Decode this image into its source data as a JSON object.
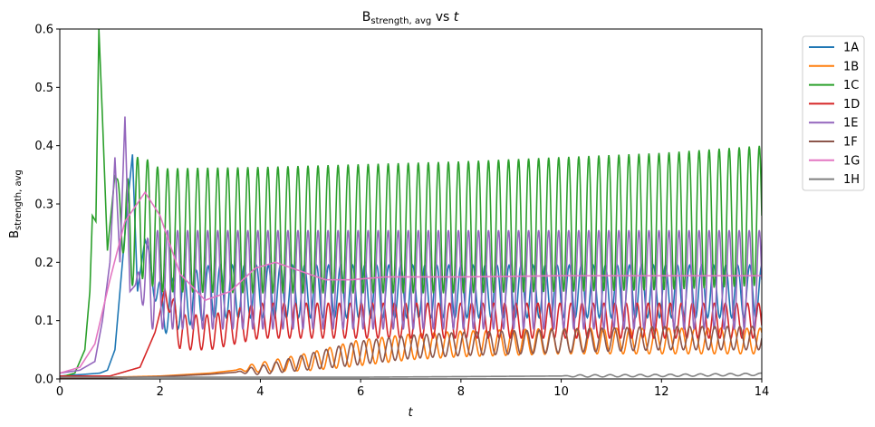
{
  "chart_data": {
    "type": "line",
    "title": {
      "main": "B",
      "subscript": "strength, avg",
      "connector": " vs ",
      "var": "t"
    },
    "xlabel": "t",
    "ylabel": {
      "main": "B",
      "subscript": "strength, avg"
    },
    "xlim": [
      0,
      14
    ],
    "ylim": [
      0,
      0.6
    ],
    "xticks": [
      "0",
      "2",
      "4",
      "6",
      "8",
      "10",
      "12",
      "14"
    ],
    "yticks": [
      "0.0",
      "0.1",
      "0.2",
      "0.3",
      "0.4",
      "0.5",
      "0.6"
    ],
    "grid": false,
    "legend_position": "outside-right",
    "series": [
      {
        "name": "1A",
        "color": "#1f77b4",
        "x": [
          0,
          0.5,
          0.8,
          0.95,
          1.1,
          1.25,
          1.35,
          1.45,
          1.55,
          1.7,
          2.0,
          3.0,
          4.0,
          6.0,
          8.0,
          10.0,
          12.0,
          14.0
        ],
        "y": [
          0.005,
          0.008,
          0.01,
          0.015,
          0.05,
          0.2,
          0.3,
          0.385,
          0.15,
          0.24,
          0.12,
          0.15,
          0.15,
          0.15,
          0.15,
          0.15,
          0.15,
          0.15
        ],
        "osc_start": 1.7,
        "osc_period": 0.24,
        "osc_amp": 0.045
      },
      {
        "name": "1B",
        "color": "#ff7f0e",
        "x": [
          0,
          1,
          2,
          3,
          4,
          5,
          6,
          7,
          8,
          10,
          12,
          14
        ],
        "y": [
          0.003,
          0.003,
          0.005,
          0.01,
          0.02,
          0.03,
          0.045,
          0.055,
          0.06,
          0.065,
          0.065,
          0.065
        ],
        "osc_start": 3.5,
        "osc_period": 0.26,
        "osc_amp": 0.022,
        "osc_grow": true
      },
      {
        "name": "1C",
        "color": "#2ca02c",
        "x": [
          0,
          0.3,
          0.5,
          0.6,
          0.65,
          0.72,
          0.78,
          0.85,
          0.95,
          1.1,
          1.3,
          1.6,
          2.0,
          4.0,
          8.0,
          12.0,
          14.0
        ],
        "y": [
          0.003,
          0.01,
          0.05,
          0.15,
          0.28,
          0.27,
          0.6,
          0.45,
          0.22,
          0.35,
          0.25,
          0.28,
          0.255,
          0.255,
          0.26,
          0.27,
          0.28
        ],
        "osc_start": 1.1,
        "osc_period": 0.2,
        "osc_amp": 0.105,
        "osc_amp_end": 0.12
      },
      {
        "name": "1D",
        "color": "#d62728",
        "x": [
          0,
          1.0,
          1.6,
          1.9,
          2.1,
          2.4,
          3.0,
          4.0,
          6.0,
          8.0,
          10.0,
          12.0,
          14.0
        ],
        "y": [
          0.005,
          0.005,
          0.02,
          0.08,
          0.15,
          0.08,
          0.08,
          0.1,
          0.1,
          0.1,
          0.1,
          0.1,
          0.1
        ],
        "osc_start": 2.0,
        "osc_period": 0.22,
        "osc_amp": 0.03
      },
      {
        "name": "1E",
        "color": "#9467bd",
        "x": [
          0,
          0.4,
          0.7,
          0.85,
          1.0,
          1.1,
          1.2,
          1.3,
          1.4,
          1.6,
          2.0,
          3.0,
          6.0,
          10.0,
          14.0
        ],
        "y": [
          0.01,
          0.015,
          0.03,
          0.1,
          0.2,
          0.38,
          0.2,
          0.45,
          0.15,
          0.17,
          0.17,
          0.17,
          0.17,
          0.17,
          0.17
        ],
        "osc_start": 1.5,
        "osc_period": 0.2,
        "osc_amp": 0.085
      },
      {
        "name": "1F",
        "color": "#8c564b",
        "x": [
          0,
          1,
          2,
          3,
          4,
          5,
          6,
          7,
          8,
          10,
          12,
          14
        ],
        "y": [
          0.002,
          0.002,
          0.004,
          0.008,
          0.015,
          0.03,
          0.045,
          0.055,
          0.06,
          0.065,
          0.07,
          0.07
        ],
        "osc_start": 3.5,
        "osc_period": 0.25,
        "osc_amp": 0.02,
        "osc_grow": true
      },
      {
        "name": "1G",
        "color": "#e377c2",
        "x": [
          0,
          0.4,
          0.7,
          1.0,
          1.3,
          1.7,
          2.0,
          2.4,
          2.9,
          3.4,
          3.9,
          4.3,
          4.8,
          5.3,
          5.8,
          6.5,
          8.0,
          10.0,
          12.0,
          14.0
        ],
        "y": [
          0.01,
          0.02,
          0.06,
          0.17,
          0.27,
          0.32,
          0.28,
          0.18,
          0.135,
          0.15,
          0.19,
          0.2,
          0.185,
          0.17,
          0.17,
          0.175,
          0.175,
          0.177,
          0.177,
          0.177
        ]
      },
      {
        "name": "1H",
        "color": "#7f7f7f",
        "x": [
          0,
          2,
          4,
          6,
          8,
          10,
          12,
          14
        ],
        "y": [
          0.003,
          0.003,
          0.003,
          0.003,
          0.004,
          0.005,
          0.006,
          0.008
        ],
        "osc_start": 10.0,
        "osc_period": 0.3,
        "osc_amp": 0.002
      }
    ]
  }
}
